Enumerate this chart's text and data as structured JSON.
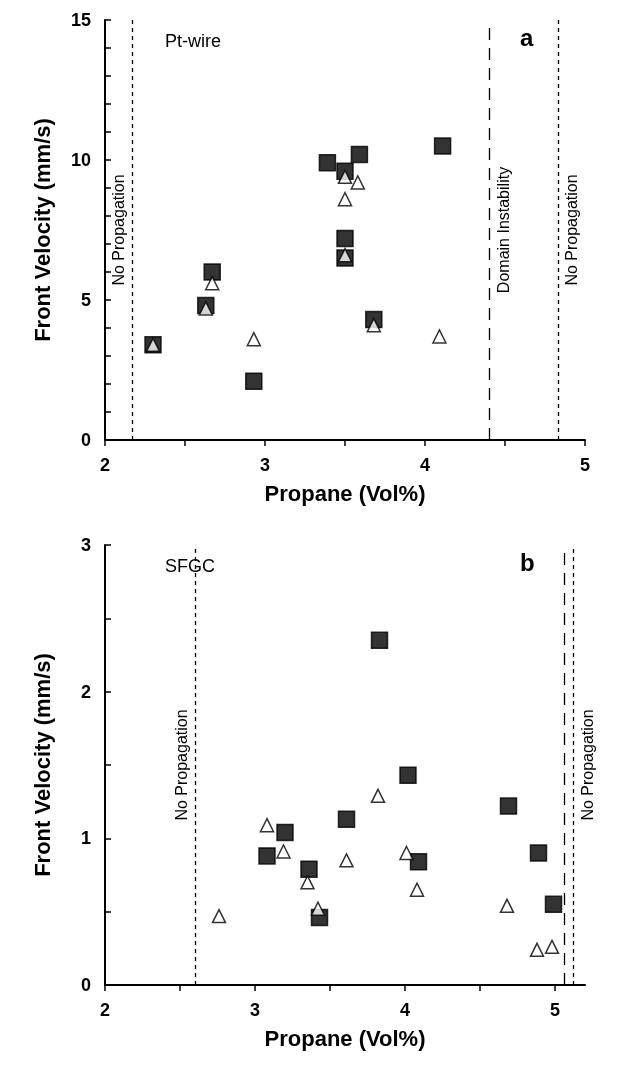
{
  "chart_data": [
    {
      "type": "scatter",
      "xlabel": "Propane (Vol%)",
      "ylabel": "Front Velocity (mm/s)",
      "annotations": [
        "Pt-wire",
        "a"
      ],
      "xlim": [
        2,
        5
      ],
      "xticks": [
        2,
        {
          "value": 2.5,
          "label": null
        },
        3,
        {
          "value": 3.5,
          "label": null
        },
        4,
        {
          "value": 4.5,
          "label": null
        },
        5
      ],
      "ylim": [
        0,
        15
      ],
      "yticks": [
        0,
        {
          "value": 1,
          "label": null
        },
        {
          "value": 2,
          "label": null
        },
        {
          "value": 3,
          "label": null
        },
        {
          "value": 4,
          "label": null
        },
        5,
        {
          "value": 6,
          "label": null
        },
        {
          "value": 7,
          "label": null
        },
        {
          "value": 8,
          "label": null
        },
        {
          "value": 9,
          "label": null
        },
        10,
        {
          "value": 11,
          "label": null
        },
        {
          "value": 12,
          "label": null
        },
        {
          "value": 13,
          "label": null
        },
        {
          "value": 14,
          "label": null
        },
        15
      ],
      "grid": false,
      "ref_lines": [
        {
          "axis": "x",
          "value": 2.17,
          "label": "No Propagation",
          "line_style": "dotted"
        },
        {
          "axis": "x",
          "value": 4.4,
          "label": "Domain Instability",
          "line_style": "dashed"
        },
        {
          "axis": "x",
          "value": 4.83,
          "label": "No Propagation",
          "line_style": "dotted"
        }
      ],
      "series": [
        {
          "color": "#000000",
          "marker": "square",
          "x": [
            2.3,
            2.63,
            2.67,
            2.93,
            3.39,
            3.5,
            3.5,
            3.5,
            3.59,
            3.68,
            4.11
          ],
          "values": [
            3.4,
            4.8,
            6.0,
            2.1,
            9.9,
            9.6,
            7.2,
            6.5,
            10.2,
            4.3,
            10.5
          ]
        },
        {
          "color": "#000000",
          "marker": "triangle",
          "x": [
            2.3,
            2.63,
            2.67,
            2.93,
            3.5,
            3.5,
            3.5,
            3.58,
            3.68,
            4.09
          ],
          "values": [
            3.4,
            4.7,
            5.6,
            3.6,
            9.4,
            8.6,
            6.6,
            9.2,
            4.1,
            3.7
          ]
        }
      ]
    },
    {
      "type": "scatter",
      "xlabel": "Propane (Vol%)",
      "ylabel": "Front Velocity (mm/s)",
      "annotations": [
        "SFGC",
        "b"
      ],
      "xlim": [
        2,
        5.2
      ],
      "xticks": [
        2,
        {
          "value": 2.5,
          "label": null
        },
        3,
        {
          "value": 3.5,
          "label": null
        },
        4,
        {
          "value": 4.5,
          "label": null
        },
        5
      ],
      "ylim": [
        0,
        3
      ],
      "yticks": [
        0,
        {
          "value": 0.5,
          "label": null
        },
        1,
        {
          "value": 1.5,
          "label": null
        },
        2,
        {
          "value": 2.5,
          "label": null
        },
        3
      ],
      "grid": false,
      "ref_lines": [
        {
          "axis": "x",
          "value": 2.6,
          "label": "No Propagation",
          "line_style": "dotted"
        },
        {
          "axis": "x",
          "value": 5.06,
          "label": null,
          "line_style": "dashed"
        },
        {
          "axis": "x",
          "value": 5.12,
          "label": "No Propagation",
          "line_style": "dotted"
        }
      ],
      "series": [
        {
          "color": "#000000",
          "marker": "square",
          "x": [
            3.08,
            3.2,
            3.36,
            3.43,
            3.61,
            3.83,
            4.02,
            4.09,
            4.69,
            4.89,
            4.99
          ],
          "values": [
            0.88,
            1.04,
            0.79,
            0.46,
            1.13,
            2.35,
            1.43,
            0.84,
            1.22,
            0.9,
            0.55
          ]
        },
        {
          "color": "#000000",
          "marker": "triangle",
          "x": [
            2.76,
            3.08,
            3.19,
            3.35,
            3.42,
            3.61,
            3.82,
            4.01,
            4.08,
            4.68,
            4.88,
            4.98
          ],
          "values": [
            0.47,
            1.09,
            0.91,
            0.7,
            0.52,
            0.85,
            1.29,
            0.9,
            0.65,
            0.54,
            0.24,
            0.26
          ]
        }
      ]
    }
  ]
}
